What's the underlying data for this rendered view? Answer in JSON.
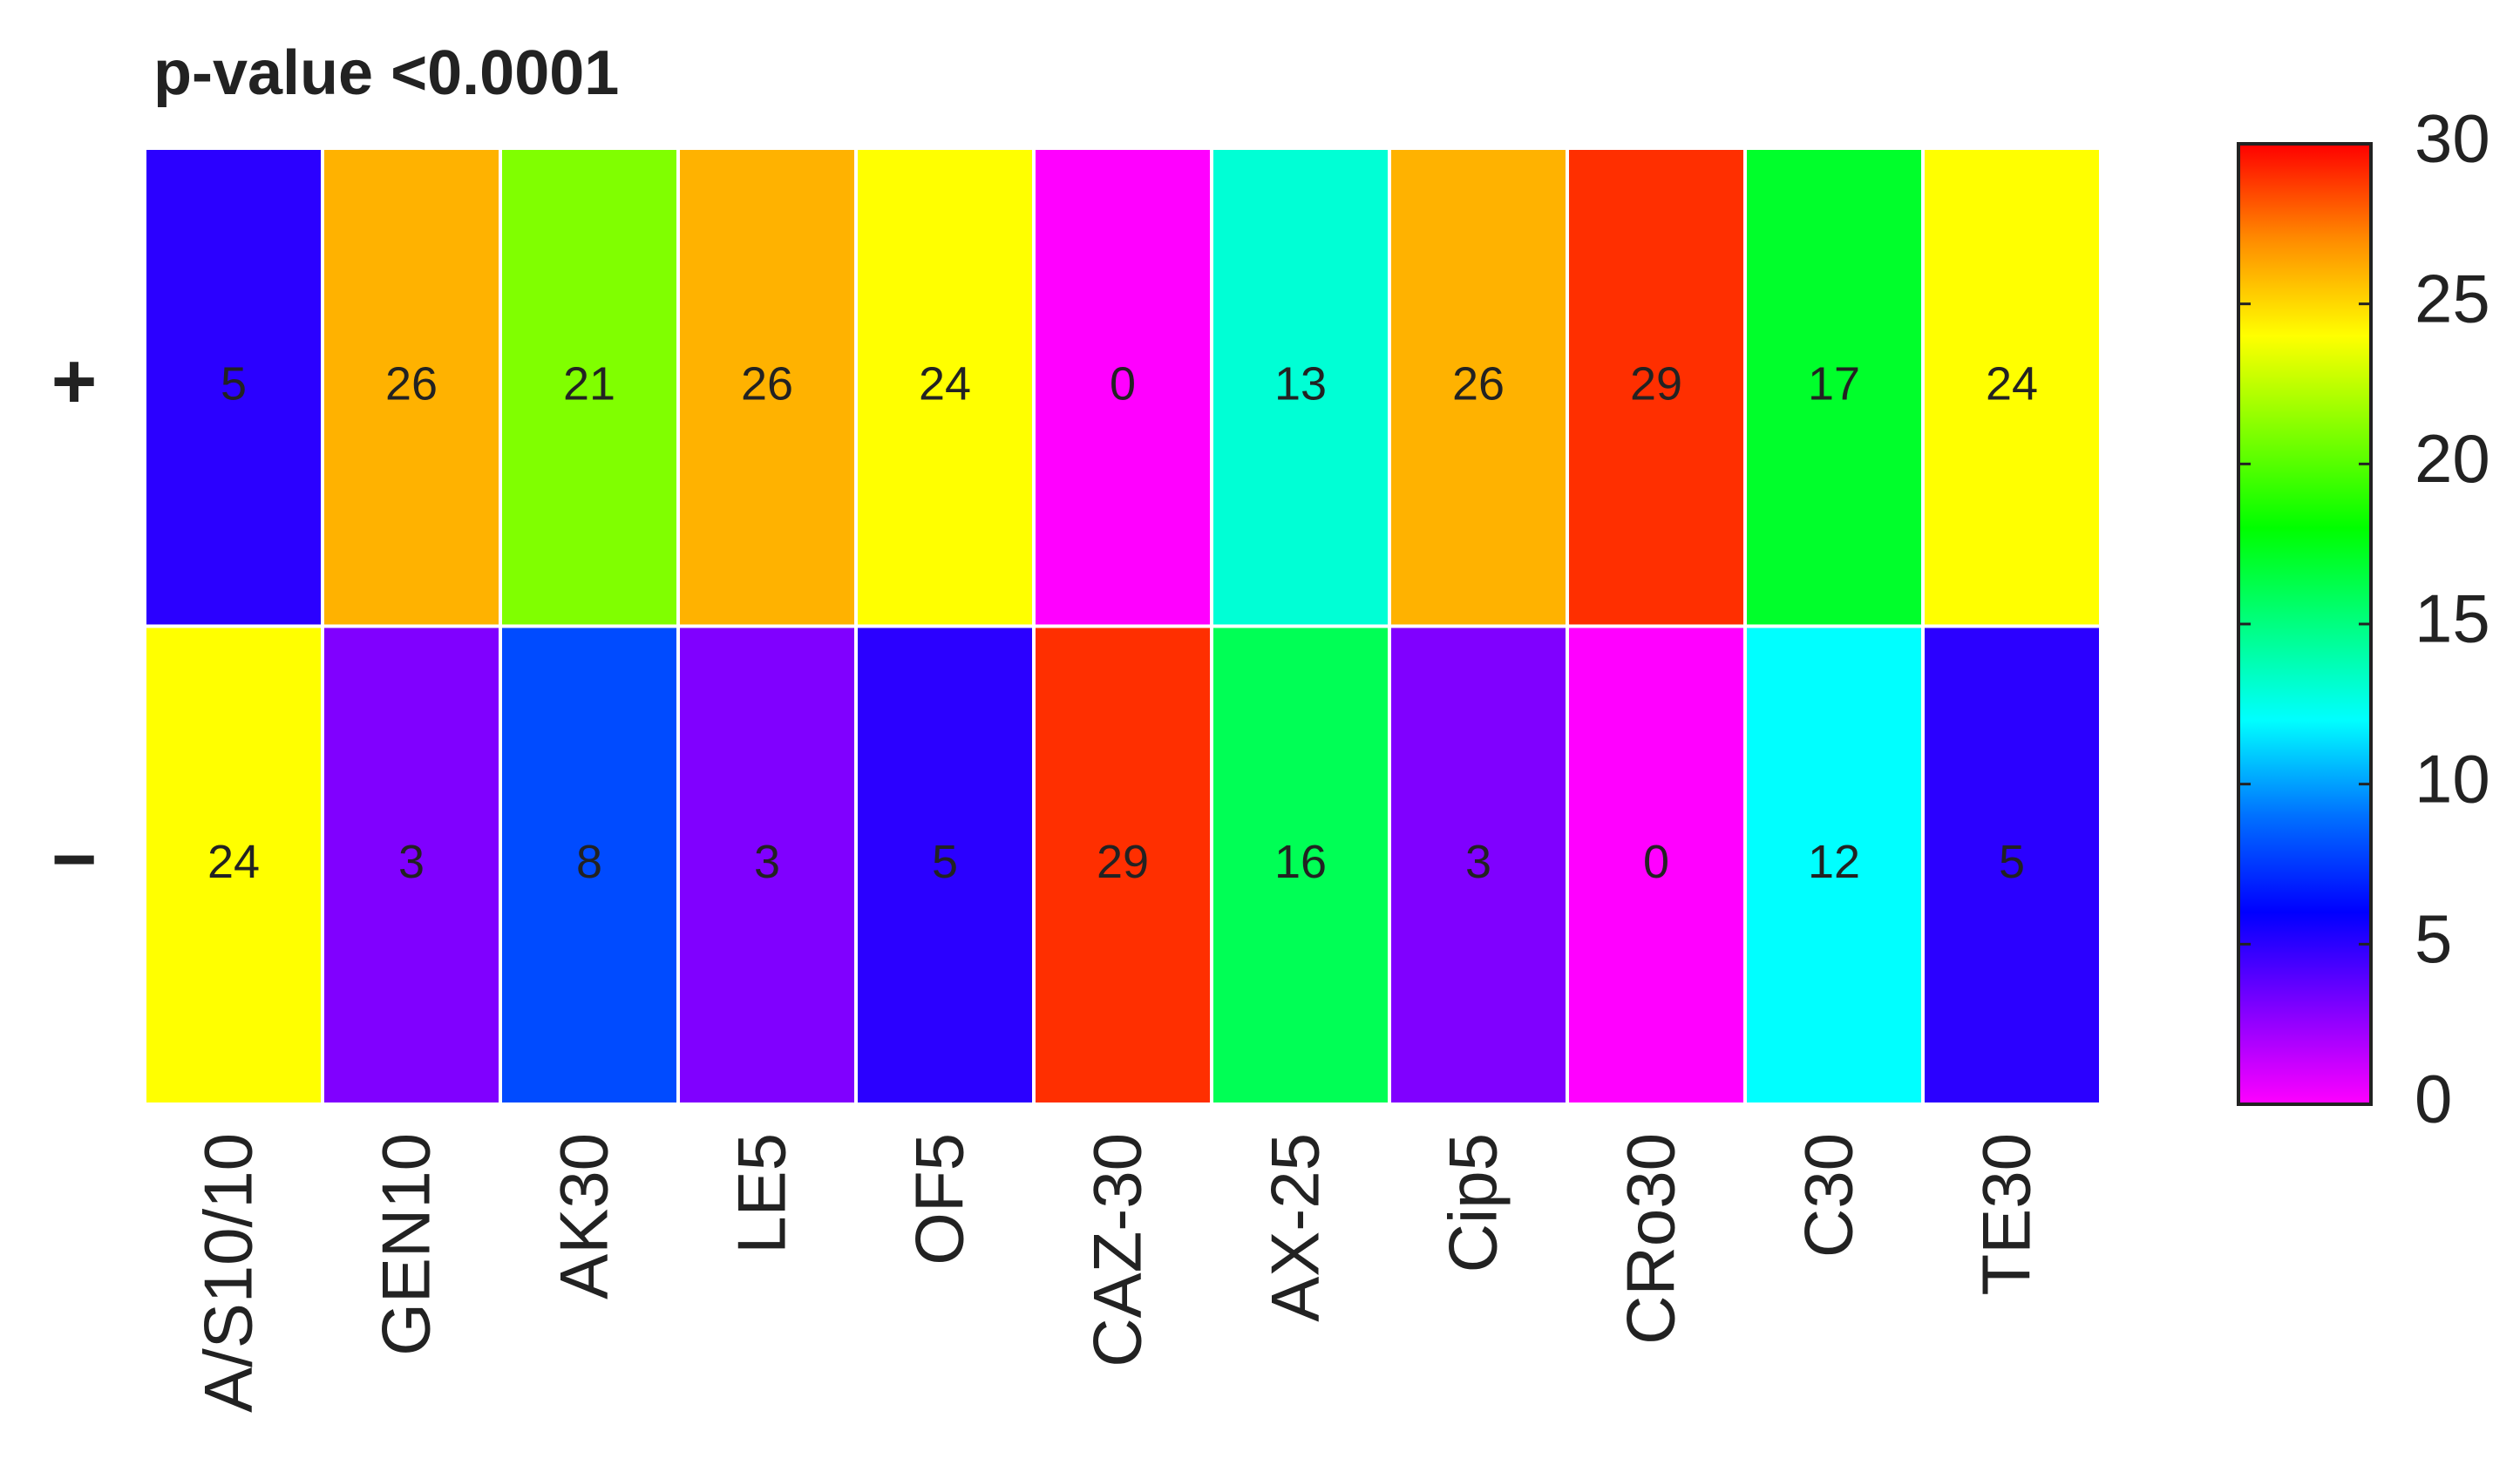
{
  "chart_data": {
    "type": "heatmap",
    "title": "p-value <0.0001",
    "x": [
      "A/S10/10",
      "GEN10",
      "AK30",
      "LE5",
      "OF5",
      "CAZ-30",
      "AX-25",
      "Cip5",
      "CRo30",
      "C30",
      "TE30"
    ],
    "y": [
      "+",
      "−"
    ],
    "z": [
      [
        5,
        26,
        21,
        26,
        24,
        0,
        13,
        26,
        29,
        17,
        24
      ],
      [
        24,
        3,
        8,
        3,
        5,
        29,
        16,
        3,
        0,
        12,
        5
      ]
    ],
    "zlim": [
      0,
      30
    ],
    "zticks": [
      0,
      5,
      10,
      15,
      20,
      25,
      30
    ],
    "colormap": [
      "#ff00ff",
      "#8000ff",
      "#0000ff",
      "#0070ff",
      "#00ffff",
      "#00ff80",
      "#00ff00",
      "#80ff00",
      "#ffff00",
      "#ff8c00",
      "#ff0000"
    ]
  }
}
